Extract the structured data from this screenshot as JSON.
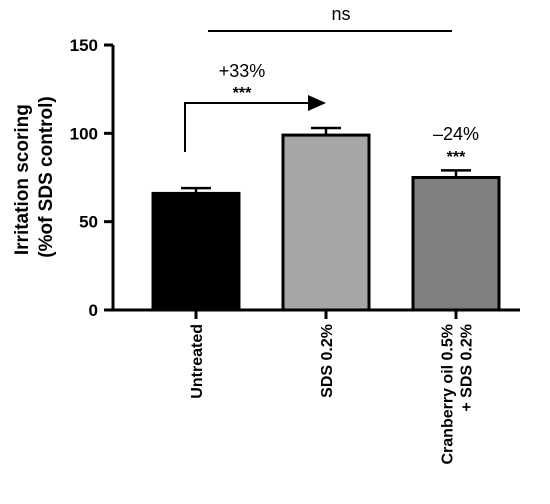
{
  "chart_data": {
    "type": "bar",
    "title": "",
    "ylabel_lines": [
      "Irritation scoring",
      "(%of SDS control)"
    ],
    "xlabel": "",
    "ylim": [
      0,
      150
    ],
    "yticks": [
      0,
      50,
      100,
      150
    ],
    "categories": [
      {
        "lines": [
          "Untreated"
        ]
      },
      {
        "lines": [
          "SDS 0.2%"
        ]
      },
      {
        "lines": [
          "Cranberry oil 0.5%",
          "+ SDS 0.2%"
        ]
      }
    ],
    "values": [
      66,
      99,
      75
    ],
    "errors": [
      3,
      4,
      4
    ],
    "bar_colors": [
      "#000000",
      "#a6a6a7",
      "#808080"
    ],
    "annotations": {
      "ns_label": "ns",
      "increase_pct": "+33%",
      "increase_sig": "***",
      "decrease_pct": "–24%",
      "decrease_sig": "***"
    }
  }
}
